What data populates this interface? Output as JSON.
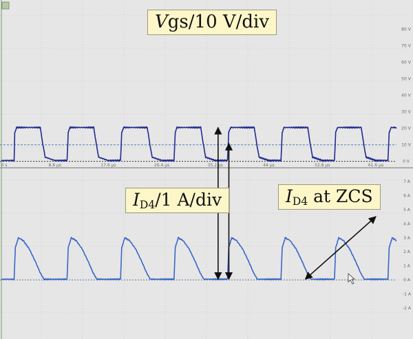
{
  "chart_data": [
    {
      "type": "line",
      "name": "Vgs",
      "annotation_main": "gs/10 V/div",
      "annotation_var": "V",
      "y_tick_labels": [
        "80 V",
        "70 V",
        "60 V",
        "50 V",
        "40 V",
        "30 V",
        "20 V",
        "10 V",
        "0 V"
      ],
      "x_tick_labels": [
        "0 s",
        "8.8 µs",
        "17.6 µs",
        "26.4 µs",
        "35.2 µs",
        "44 µs",
        "52.8 µs",
        "61.6 µs"
      ],
      "xlim": [
        0,
        65
      ],
      "ylim": [
        -1,
        84
      ],
      "reference_level": 10,
      "series_color": "#1f2a8f",
      "x": [
        0,
        2.1,
        2.2,
        2.5,
        6.4,
        6.8,
        7.2,
        8.8,
        10.8,
        11.0,
        11.3,
        15.2,
        15.6,
        16.0,
        17.6,
        19.6,
        19.8,
        20.1,
        24.0,
        24.4,
        24.8,
        26.4,
        28.4,
        28.6,
        28.9,
        32.8,
        33.2,
        33.6,
        35.2,
        37.2,
        37.4,
        37.7,
        41.6,
        42.0,
        42.4,
        44.0,
        46.0,
        46.2,
        46.5,
        50.4,
        50.8,
        51.2,
        52.8,
        54.8,
        55.0,
        55.3,
        59.2,
        59.6,
        60.0,
        61.6,
        63.6,
        63.8,
        64.1,
        65.0
      ],
      "y": [
        0.5,
        0.5,
        17.5,
        20.5,
        20.5,
        10.8,
        2.5,
        0.5,
        0.5,
        17.5,
        20.5,
        20.5,
        10.8,
        2.5,
        0.5,
        0.5,
        17.5,
        20.5,
        20.5,
        10.8,
        2.5,
        0.5,
        0.5,
        17.5,
        20.5,
        20.5,
        10.8,
        2.5,
        0.5,
        0.5,
        17.5,
        20.5,
        20.5,
        10.8,
        2.5,
        0.5,
        0.5,
        17.5,
        20.5,
        20.5,
        10.8,
        2.5,
        0.5,
        0.5,
        17.5,
        20.5,
        20.5,
        10.8,
        2.5,
        0.5,
        0.5,
        17.5,
        20.5,
        20.5
      ]
    },
    {
      "type": "line",
      "name": "ID4",
      "annotation_main": "/1 A/div",
      "annotation_sub": "D4",
      "annotation_var": "I",
      "annotation_zcs_suffix": " at ZCS",
      "y_tick_labels": [
        "7 A",
        "6 A",
        "5 A",
        "4 A",
        "3 A",
        "2 A",
        "1 A",
        "0 A",
        "-1 A",
        "-2 A"
      ],
      "xlim": [
        0,
        65
      ],
      "ylim": [
        -2.2,
        7.3
      ],
      "series_color": "#3a66c8",
      "x": [
        0,
        2.1,
        2.3,
        2.8,
        3.6,
        4.6,
        5.6,
        6.4,
        7.0,
        8.8,
        10.8,
        11.0,
        11.5,
        12.3,
        13.3,
        14.3,
        15.1,
        15.7,
        17.6,
        19.6,
        19.8,
        20.3,
        21.1,
        22.1,
        23.1,
        23.9,
        24.5,
        26.4,
        28.4,
        28.6,
        29.1,
        29.9,
        30.9,
        31.9,
        32.7,
        33.3,
        35.2,
        37.2,
        37.4,
        37.9,
        38.7,
        39.7,
        40.7,
        41.5,
        42.1,
        44.0,
        46.0,
        46.2,
        46.7,
        47.5,
        48.5,
        49.5,
        50.3,
        50.9,
        52.8,
        54.8,
        55.0,
        55.5,
        56.3,
        57.3,
        58.3,
        59.1,
        59.7,
        61.6,
        63.6,
        63.8,
        64.3,
        65.0
      ],
      "y": [
        0.05,
        0.05,
        2.3,
        3.0,
        2.8,
        2.2,
        1.3,
        0.5,
        0.05,
        0.05,
        0.05,
        2.3,
        3.0,
        2.8,
        2.2,
        1.3,
        0.5,
        0.05,
        0.05,
        0.05,
        2.3,
        3.0,
        2.8,
        2.2,
        1.3,
        0.5,
        0.05,
        0.05,
        0.05,
        2.3,
        3.0,
        2.8,
        2.2,
        1.3,
        0.5,
        0.05,
        0.05,
        0.05,
        2.3,
        3.0,
        2.8,
        2.2,
        1.3,
        0.5,
        0.05,
        0.05,
        0.05,
        2.3,
        3.0,
        2.8,
        2.2,
        1.3,
        0.5,
        0.05,
        0.05,
        0.05,
        2.3,
        3.0,
        2.8,
        2.2,
        1.3,
        0.5,
        0.05,
        0.05,
        0.05,
        2.3,
        3.0,
        2.8
      ]
    }
  ]
}
